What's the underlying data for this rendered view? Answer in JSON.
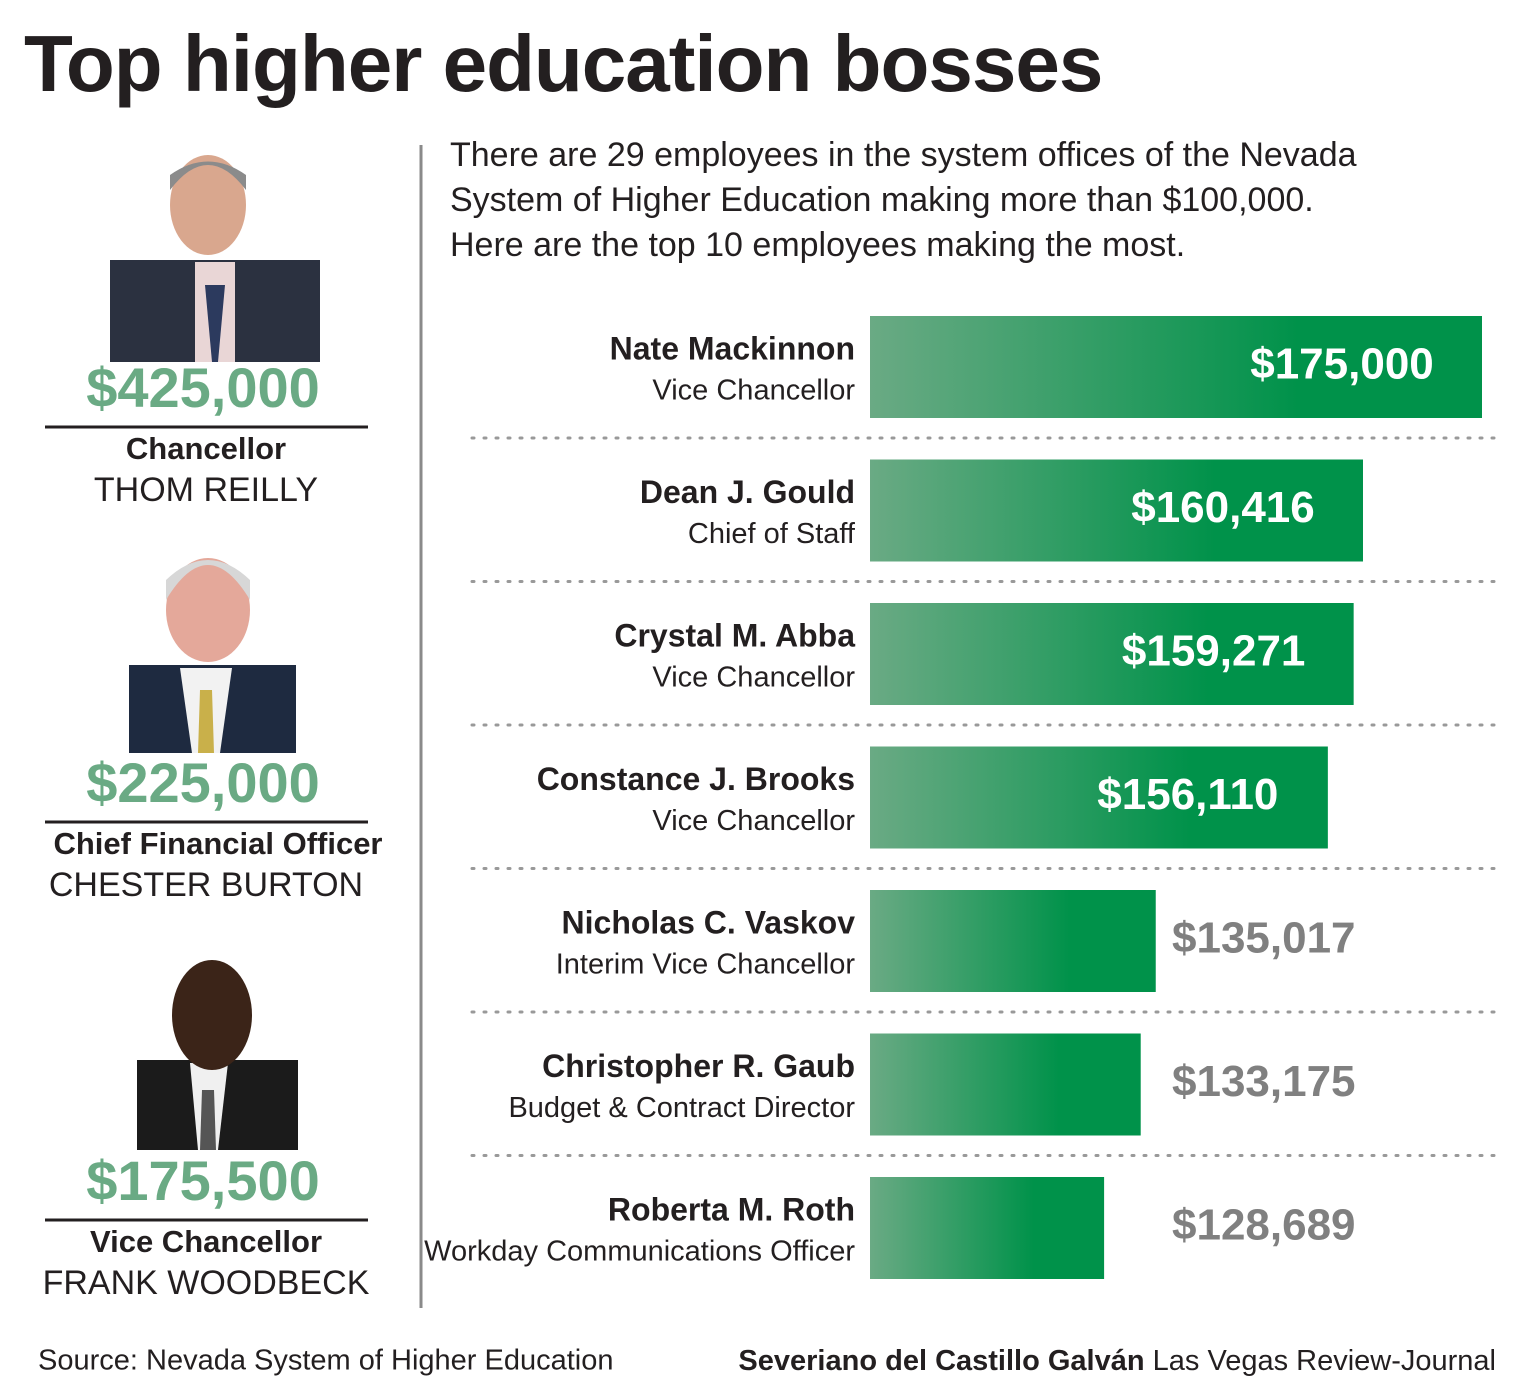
{
  "chart_data": {
    "type": "bar",
    "orientation": "horizontal",
    "title": "Top higher education bosses",
    "subtitle": [
      "There are 29 employees in the system offices of the Nevada",
      "System of Higher Education making more than $100,000.",
      "Here are the top 10 employees making the most."
    ],
    "categories": [
      "Nate Mackinnon",
      "Dean J. Gould",
      "Crystal M. Abba",
      "Constance J. Brooks",
      "Nicholas C. Vaskov",
      "Christopher R. Gaub",
      "Roberta M. Roth"
    ],
    "roles": [
      "Vice Chancellor",
      "Chief of Staff",
      "Vice Chancellor",
      "Vice Chancellor",
      "Interim Vice Chancellor",
      "Budget & Contract Director",
      "Workday Communications Officer"
    ],
    "values": [
      175000,
      160416,
      159271,
      156110,
      135017,
      133175,
      128689
    ],
    "value_labels": [
      "$175,000",
      "$160,416",
      "$159,271",
      "$156,110",
      "$135,017",
      "$133,175",
      "$128,689"
    ],
    "xlim": [
      100000,
      175000
    ]
  },
  "featured": [
    {
      "salary": "$425,000",
      "title": "Chancellor",
      "name": "THOM REILLY"
    },
    {
      "salary": "$225,000",
      "title": "Chief Financial Officer",
      "name": "CHESTER BURTON"
    },
    {
      "salary": "$175,500",
      "title": "Vice Chancellor",
      "name": "FRANK WOODBECK"
    }
  ],
  "source": "Source: Nevada System of Higher Education",
  "credit": {
    "author": "Severiano del Castillo Galván",
    "outlet": "Las Vegas Review-Journal"
  }
}
